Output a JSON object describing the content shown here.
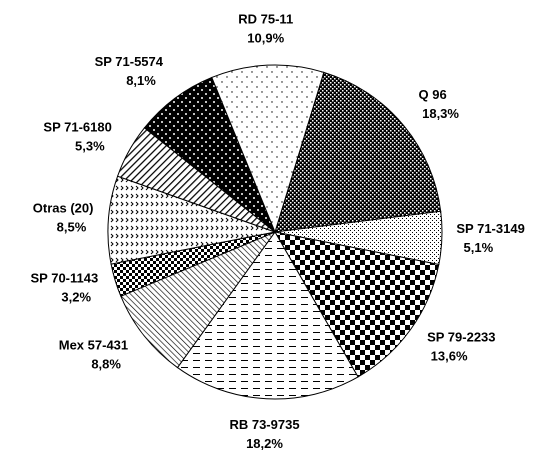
{
  "chart_data": {
    "type": "pie",
    "categories": [
      "Q 96",
      "SP 71-3149",
      "SP 79-2233",
      "RB 73-9735",
      "Mex 57-431",
      "SP 70-1143",
      "Otras (20)",
      "SP 71-6180",
      "SP 71-5574",
      "RD 75-11"
    ],
    "values": [
      18.3,
      5.1,
      13.6,
      18.2,
      8.8,
      3.2,
      8.5,
      5.3,
      8.1,
      10.9
    ],
    "value_labels": [
      "18,3%",
      "5,1%",
      "13,6%",
      "18,2%",
      "8,8%",
      "3,2%",
      "8,5%",
      "5,3%",
      "8,1%",
      "10,9%"
    ]
  }
}
